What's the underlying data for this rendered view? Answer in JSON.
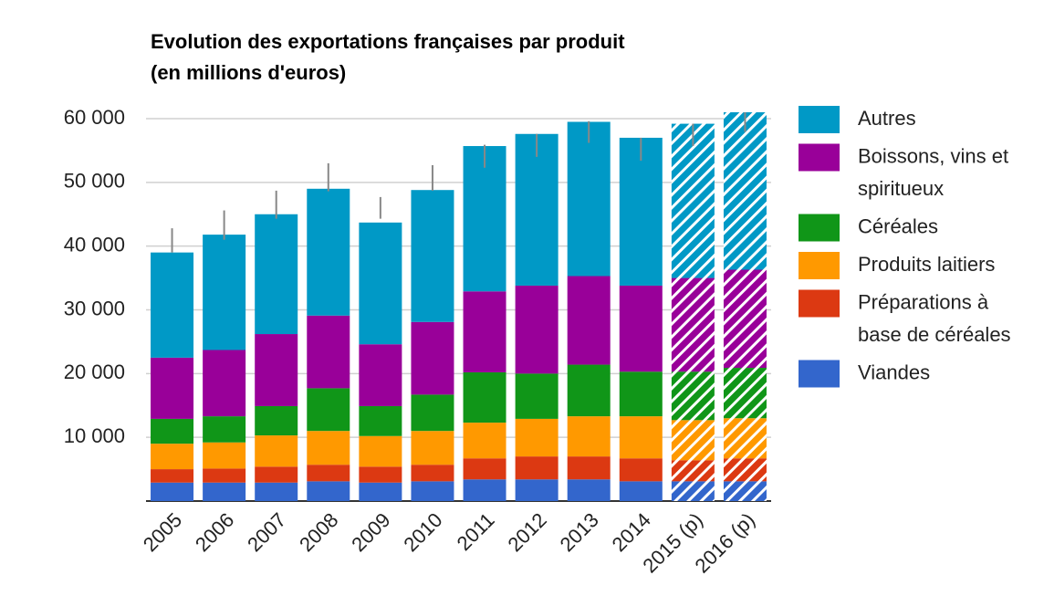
{
  "chart_data": {
    "type": "stacked_bar",
    "title": "Evolution des exportations françaises par produit",
    "subtitle": "(en millions d'euros)",
    "categories": [
      "2005",
      "2006",
      "2007",
      "2008",
      "2009",
      "2010",
      "2011",
      "2012",
      "2013",
      "2014",
      "2015 (p)",
      "2016 (p)"
    ],
    "series": [
      {
        "name": "Viandes",
        "color": "#3366cc",
        "values": [
          2900,
          2900,
          2900,
          3100,
          2900,
          3100,
          3400,
          3400,
          3400,
          3100,
          3100,
          3100
        ]
      },
      {
        "name": "Préparations à base de céréales",
        "color": "#dc3912",
        "values": [
          2100,
          2200,
          2500,
          2600,
          2500,
          2600,
          3300,
          3600,
          3600,
          3600,
          3300,
          3600
        ]
      },
      {
        "name": "Produits laitiers",
        "color": "#ff9900",
        "values": [
          4000,
          4100,
          4900,
          5300,
          4800,
          5300,
          5600,
          5900,
          6300,
          6600,
          6300,
          6300
        ]
      },
      {
        "name": "Céréales",
        "color": "#109618",
        "values": [
          3900,
          4100,
          4600,
          6700,
          4700,
          5700,
          7900,
          7100,
          8100,
          7000,
          7600,
          7900
        ]
      },
      {
        "name": "Boissons, vins et spiritueux",
        "color": "#990099",
        "values": [
          9600,
          10400,
          11300,
          11400,
          9700,
          11400,
          12700,
          13800,
          13900,
          13500,
          14700,
          15400
        ]
      },
      {
        "name": "Autres",
        "color": "#0099c6",
        "values": [
          16500,
          18100,
          18800,
          19900,
          19100,
          20700,
          22800,
          23800,
          24200,
          23200,
          24200,
          24700
        ]
      }
    ],
    "error_bars": [
      {
        "low": 39000,
        "high": 42800
      },
      {
        "low": 41000,
        "high": 45600
      },
      {
        "low": 44300,
        "high": 48700
      },
      {
        "low": 48600,
        "high": 53000
      },
      {
        "low": 44300,
        "high": 47700
      },
      {
        "low": 48700,
        "high": 52700
      },
      {
        "low": 52300,
        "high": 55900
      },
      {
        "low": 54000,
        "high": 57600
      },
      {
        "low": 56200,
        "high": 59600
      },
      {
        "low": 53400,
        "high": 57000
      },
      {
        "low": 55700,
        "high": 59200
      },
      {
        "low": 57900,
        "high": 61000
      }
    ],
    "hatched": [
      false,
      false,
      false,
      false,
      false,
      false,
      false,
      false,
      false,
      false,
      true,
      true
    ],
    "ylim": [
      0,
      60000
    ],
    "yticks": [
      {
        "value": 10000,
        "label": "10 000"
      },
      {
        "value": 20000,
        "label": "20 000"
      },
      {
        "value": 30000,
        "label": "30 000"
      },
      {
        "value": 40000,
        "label": "40 000"
      },
      {
        "value": 50000,
        "label": "50 000"
      },
      {
        "value": 60000,
        "label": "60 000"
      }
    ],
    "grid": true,
    "legend": "right"
  }
}
